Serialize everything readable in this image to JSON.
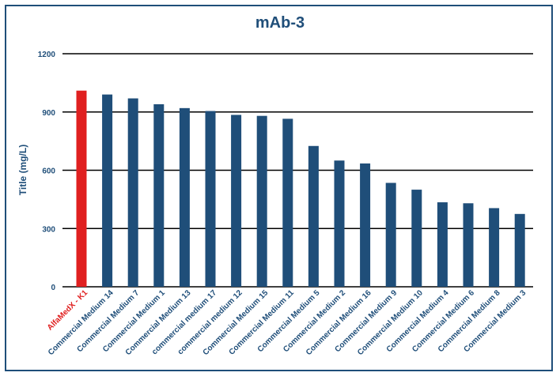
{
  "chart_data": {
    "type": "bar",
    "title": "mAb-3",
    "ylabel": "Title (mg/L)",
    "xlabel": "",
    "ylim": [
      0,
      1200
    ],
    "yticks": [
      0,
      300,
      600,
      900,
      1200
    ],
    "grid": true,
    "categories": [
      "AlfaMedX - K1",
      "Commercial Medium 14",
      "Commercial Medium 7",
      "Commercial Medium 1",
      "Commercial Medium 13",
      "commercial medium 17",
      "commercial medium 12",
      "Commercial Medium 15",
      "Commercial Medium 11",
      "Commercial Medium 5",
      "Commercial Medium 2",
      "Commercial Medium 16",
      "Commercial Medium 9",
      "Commercial Medium 10",
      "Commercial Medium 4",
      "Commercial Medium 6",
      "Commercial Medium 8",
      "Commercial Medium 3"
    ],
    "values": [
      1010,
      990,
      970,
      940,
      920,
      905,
      885,
      880,
      865,
      725,
      650,
      635,
      535,
      500,
      435,
      430,
      405,
      375
    ],
    "highlight_index": 0,
    "colors": {
      "bar": "#1f4e79",
      "highlight": "#e02020",
      "axis_text": "#1f4e79",
      "grid": "#000000"
    }
  }
}
